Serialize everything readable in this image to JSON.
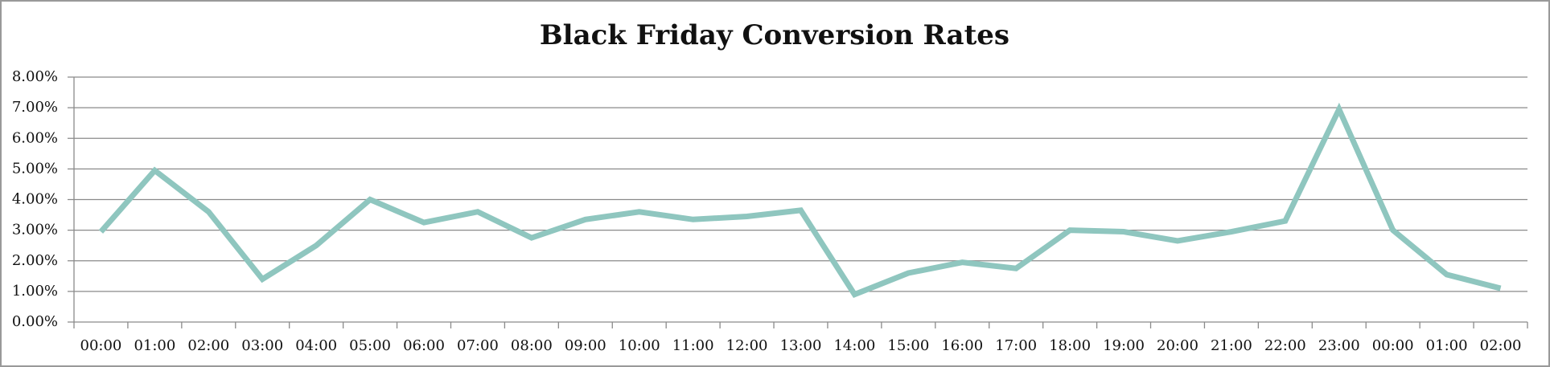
{
  "chart_data": {
    "type": "line",
    "title": "Black Friday Conversion Rates",
    "categories": [
      "00:00",
      "01:00",
      "02:00",
      "03:00",
      "04:00",
      "05:00",
      "06:00",
      "07:00",
      "08:00",
      "09:00",
      "10:00",
      "11:00",
      "12:00",
      "13:00",
      "14:00",
      "15:00",
      "16:00",
      "17:00",
      "18:00",
      "19:00",
      "20:00",
      "21:00",
      "22:00",
      "23:00",
      "00:00",
      "01:00",
      "02:00"
    ],
    "values": [
      2.95,
      4.95,
      3.6,
      1.4,
      2.5,
      4.0,
      3.25,
      3.6,
      2.75,
      3.35,
      3.6,
      3.35,
      3.45,
      3.65,
      0.9,
      1.6,
      1.95,
      1.75,
      3.0,
      2.95,
      2.65,
      2.95,
      3.3,
      6.95,
      3.0,
      1.55,
      1.1
    ],
    "color": "#8fc6bf",
    "ylim": [
      0,
      8
    ],
    "yticks": [
      {
        "value": 0,
        "label": "0.00%"
      },
      {
        "value": 1,
        "label": "1.00%"
      },
      {
        "value": 2,
        "label": "2.00%"
      },
      {
        "value": 3,
        "label": "3.00%"
      },
      {
        "value": 4,
        "label": "4.00%"
      },
      {
        "value": 5,
        "label": "5.00%"
      },
      {
        "value": 6,
        "label": "6.00%"
      },
      {
        "value": 7,
        "label": "7.00%"
      },
      {
        "value": 8,
        "label": "8.00%"
      }
    ],
    "grid": true
  }
}
